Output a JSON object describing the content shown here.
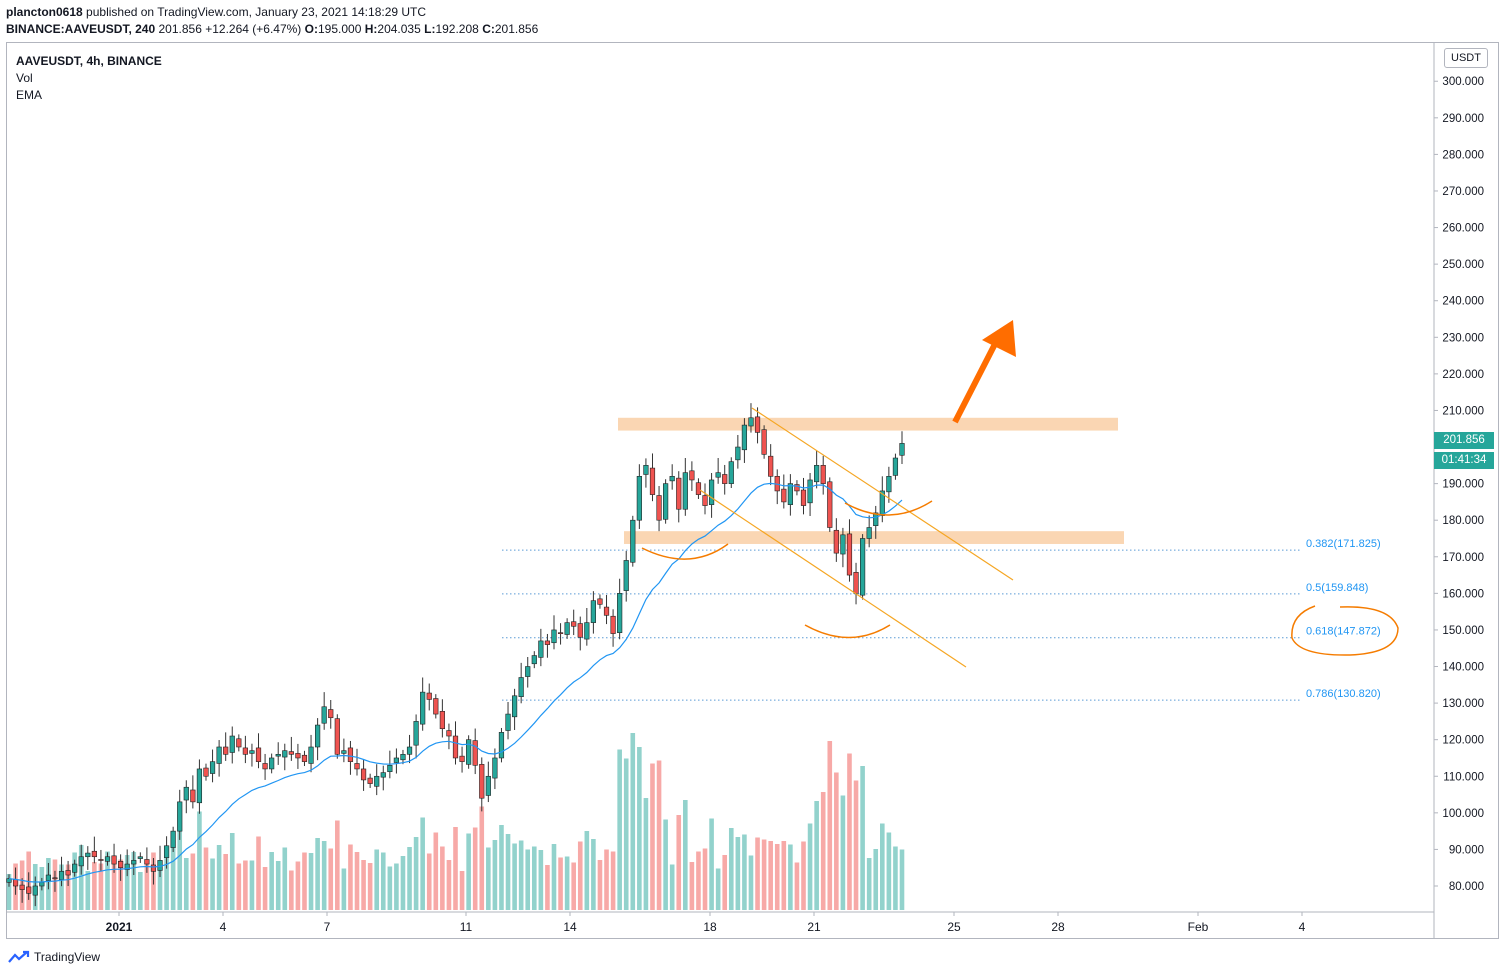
{
  "header": {
    "publisher": "plancton0618",
    "published_text": "published on TradingView.com, January 23, 2021 14:18:29 UTC",
    "symbol_line": "BINANCE:AAVEUSDT, 240",
    "last": "201.856",
    "change": "+12.264 (+6.47%)",
    "o_label": "O:",
    "o": "195.000",
    "h_label": "H:",
    "h": "204.035",
    "l_label": "L:",
    "l": "192.208",
    "c_label": "C:",
    "c": "201.856"
  },
  "legend": {
    "symbol": "AAVEUSDT, 4h, BINANCE",
    "vol": "Vol",
    "ema": "EMA"
  },
  "price_axis": {
    "currency": "USDT",
    "ticks": [
      "300.000",
      "290.000",
      "280.000",
      "270.000",
      "260.000",
      "250.000",
      "240.000",
      "230.000",
      "220.000",
      "210.000",
      "190.000",
      "180.000",
      "170.000",
      "160.000",
      "150.000",
      "140.000",
      "130.000",
      "120.000",
      "110.000",
      "100.000",
      "90.000",
      "80.000"
    ],
    "last_price": "201.856",
    "countdown": "01:41:34"
  },
  "time_axis": {
    "ticks": [
      "2021",
      "4",
      "7",
      "11",
      "14",
      "18",
      "21",
      "25",
      "28",
      "Feb",
      "4"
    ]
  },
  "fib_levels": [
    {
      "label": "0.382(171.825)",
      "price": 171.825
    },
    {
      "label": "0.5(159.848)",
      "price": 159.848
    },
    {
      "label": "0.618(147.872)",
      "price": 147.872
    },
    {
      "label": "0.786(130.820)",
      "price": 130.82
    }
  ],
  "chart_data": {
    "type": "candlestick",
    "symbol": "AAVEUSDT",
    "interval": "4h",
    "ylim": [
      74,
      306
    ],
    "resistance_zone": [
      204.5,
      208.0
    ],
    "support_zone": [
      173.5,
      177.0
    ],
    "series_close": [
      82,
      80,
      79,
      78,
      80,
      81,
      83,
      82,
      84,
      83,
      86,
      88,
      89,
      88,
      87,
      88,
      86,
      85,
      86,
      87,
      88,
      86,
      84,
      87,
      91,
      95,
      103,
      107,
      103,
      112,
      110,
      114,
      118,
      116,
      121,
      118,
      116,
      117,
      114,
      112,
      115,
      116,
      117,
      116,
      115,
      114,
      118,
      124,
      129,
      126,
      116,
      117,
      114,
      112,
      109,
      108,
      110,
      111,
      113,
      115,
      116,
      118,
      125,
      133,
      131,
      127,
      123,
      121,
      115,
      114,
      120,
      113,
      104,
      110,
      115,
      122,
      127,
      132,
      137,
      140,
      143,
      147,
      146,
      150,
      149,
      152,
      151,
      148,
      152,
      158,
      157,
      154,
      149,
      160,
      169,
      180,
      192,
      195,
      187,
      180,
      190,
      192,
      183,
      193,
      191,
      187,
      184,
      191,
      193,
      190,
      196,
      200,
      206,
      208,
      204,
      198,
      192,
      188,
      185,
      190,
      188,
      184,
      191,
      195,
      190,
      178,
      171,
      176,
      165,
      160,
      175,
      178,
      182,
      188,
      192,
      197,
      201
    ],
    "ema_color": "#2196f3",
    "up_color": "#26a69a",
    "down_color": "#ef5350"
  },
  "branding": {
    "logo_text": "TradingView"
  }
}
